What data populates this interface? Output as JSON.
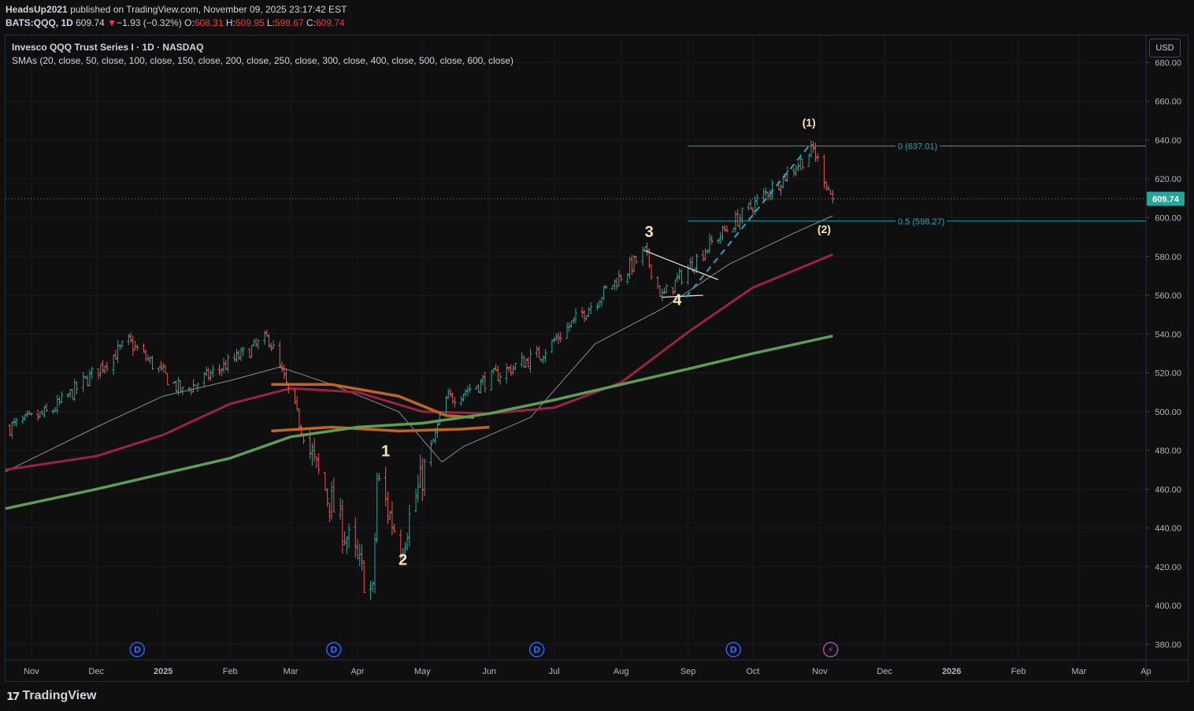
{
  "header": {
    "publisher": "HeadsUp2021",
    "published_text": "published on TradingView.com, November 09, 2025 23:17:42 EST",
    "symbol": "BATS:QQQ, 1D",
    "last": "609.74",
    "change_arrow": "▼",
    "change": "−1.93 (−0.32%)",
    "o_label": "O:",
    "o": "608.31",
    "h_label": "H:",
    "h": "609.95",
    "l_label": "L:",
    "l": "598.67",
    "c_label": "C:",
    "c": "609.74"
  },
  "legend": {
    "title": "Invesco QQQ Trust Series I · 1D · NASDAQ",
    "indicator": "SMAs (20, close, 50, close, 100, close, 150, close, 200, close, 250, close, 300, close, 400, close, 500, close, 600, close)"
  },
  "currency_button": "USD",
  "branding": "TradingView",
  "colors": {
    "background": "#0f0f0f",
    "up": "#26a69a",
    "down": "#ef5350",
    "sma_gray": "#8a8d94",
    "sma_maroon": "#9c2245",
    "sma_orange": "#c0651a",
    "sma_green": "#5e9c58",
    "fib": "#2aa4b8",
    "price_tag": "#26a69a",
    "wave_label": "#f5e6b8"
  },
  "chart_data": {
    "type": "candlestick",
    "title": "Invesco QQQ Trust Series I · 1D · NASDAQ",
    "yaxis": {
      "ticks": [
        "680.00",
        "660.00",
        "640.00",
        "620.00",
        "600.00",
        "580.00",
        "560.00",
        "540.00",
        "520.00",
        "500.00",
        "480.00",
        "460.00",
        "440.00",
        "420.00",
        "400.00",
        "380.00"
      ],
      "range": [
        372,
        694
      ]
    },
    "xaxis": {
      "labels": [
        "Nov",
        "Dec",
        "2025",
        "Feb",
        "Mar",
        "Apr",
        "May",
        "Jun",
        "Jul",
        "Aug",
        "Sep",
        "Oct",
        "Nov",
        "Dec",
        "2026",
        "Feb",
        "Mar",
        "Ap"
      ],
      "range": [
        "2024-10-20",
        "2026-04-01"
      ]
    },
    "price_series_anchor_dates": [
      "2024-10-22",
      "2024-11-10",
      "2024-12-16",
      "2025-01-10",
      "2025-02-19",
      "2025-03-13",
      "2025-04-08",
      "2025-04-10",
      "2025-04-21",
      "2025-05-12",
      "2025-06-25",
      "2025-08-12",
      "2025-08-20",
      "2025-09-10",
      "2025-10-29",
      "2025-11-07"
    ],
    "price_series_anchor_closes": [
      492,
      500,
      536,
      510,
      538,
      470,
      405,
      465,
      431,
      506,
      530,
      582,
      559,
      585,
      635,
      609.74
    ],
    "sma_series": [
      {
        "name": "SMA 50",
        "points": [
          [
            "2024-10-20",
            469
          ],
          [
            "2024-12-01",
            492
          ],
          [
            "2025-01-01",
            508
          ],
          [
            "2025-02-01",
            516
          ],
          [
            "2025-02-24",
            523
          ],
          [
            "2025-03-20",
            514
          ],
          [
            "2025-04-20",
            500
          ],
          [
            "2025-05-10",
            474
          ],
          [
            "2025-05-20",
            482
          ],
          [
            "2025-06-20",
            497
          ],
          [
            "2025-07-20",
            535
          ],
          [
            "2025-08-20",
            553
          ],
          [
            "2025-09-20",
            576
          ],
          [
            "2025-10-20",
            592
          ],
          [
            "2025-11-07",
            601
          ]
        ]
      },
      {
        "name": "SMA 100",
        "points": [
          [
            "2024-10-20",
            470
          ],
          [
            "2024-12-01",
            477
          ],
          [
            "2025-01-01",
            488
          ],
          [
            "2025-02-01",
            504
          ],
          [
            "2025-03-01",
            512
          ],
          [
            "2025-04-01",
            510
          ],
          [
            "2025-05-01",
            500
          ],
          [
            "2025-06-01",
            499
          ],
          [
            "2025-07-01",
            502
          ],
          [
            "2025-08-01",
            515
          ],
          [
            "2025-09-01",
            541
          ],
          [
            "2025-10-01",
            564
          ],
          [
            "2025-11-07",
            581
          ]
        ]
      },
      {
        "name": "SMA 150",
        "points": [
          [
            "2025-02-20",
            514
          ],
          [
            "2025-03-20",
            514
          ],
          [
            "2025-04-20",
            508
          ],
          [
            "2025-05-12",
            498
          ],
          [
            "2025-05-25",
            497
          ]
        ]
      },
      {
        "name": "SMA 200",
        "points": [
          [
            "2025-02-20",
            490
          ],
          [
            "2025-03-20",
            492
          ],
          [
            "2025-04-20",
            490
          ],
          [
            "2025-05-20",
            491
          ],
          [
            "2025-06-01",
            492
          ]
        ]
      },
      {
        "name": "SMA 250",
        "points": [
          [
            "2024-10-20",
            450
          ],
          [
            "2024-12-01",
            460
          ],
          [
            "2025-01-01",
            468
          ],
          [
            "2025-02-01",
            476
          ],
          [
            "2025-03-01",
            487
          ],
          [
            "2025-04-01",
            492
          ],
          [
            "2025-05-01",
            494
          ],
          [
            "2025-06-01",
            499
          ],
          [
            "2025-07-01",
            506
          ],
          [
            "2025-08-01",
            514
          ],
          [
            "2025-09-01",
            522
          ],
          [
            "2025-10-01",
            530
          ],
          [
            "2025-11-07",
            539
          ]
        ]
      }
    ],
    "fibonacci": [
      {
        "label": "0 (637.01)",
        "value": 637.01
      },
      {
        "label": "0.5 (598.27)",
        "value": 598.27
      }
    ],
    "fib_range_start": "2025-09-01",
    "current_price": {
      "label": "609.74",
      "value": 609.74
    },
    "wave_labels": [
      {
        "text": "1",
        "date": "2025-04-14",
        "price": 477
      },
      {
        "text": "2",
        "date": "2025-04-22",
        "price": 421
      },
      {
        "text": "3",
        "date": "2025-08-14",
        "price": 590
      },
      {
        "text": "4",
        "date": "2025-08-27",
        "price": 555
      },
      {
        "text": "(1)",
        "date": "2025-10-27",
        "price": 647
      },
      {
        "text": "(2)",
        "date": "2025-11-03",
        "price": 592
      }
    ],
    "trendlines": [
      {
        "from": [
          "2025-08-12",
          583
        ],
        "to": [
          "2025-09-15",
          568
        ]
      },
      {
        "from": [
          "2025-08-20",
          559
        ],
        "to": [
          "2025-09-08",
          560
        ]
      }
    ],
    "dashed_channel": [
      [
        "2025-08-31",
        559
      ],
      [
        "2025-10-27",
        637
      ]
    ],
    "event_markers": [
      {
        "date": "2024-12-20",
        "label": "D"
      },
      {
        "date": "2025-03-21",
        "label": "D"
      },
      {
        "date": "2025-06-23",
        "label": "D"
      },
      {
        "date": "2025-09-22",
        "label": "D"
      },
      {
        "date": "2025-11-06",
        "label": "⚡"
      }
    ]
  }
}
